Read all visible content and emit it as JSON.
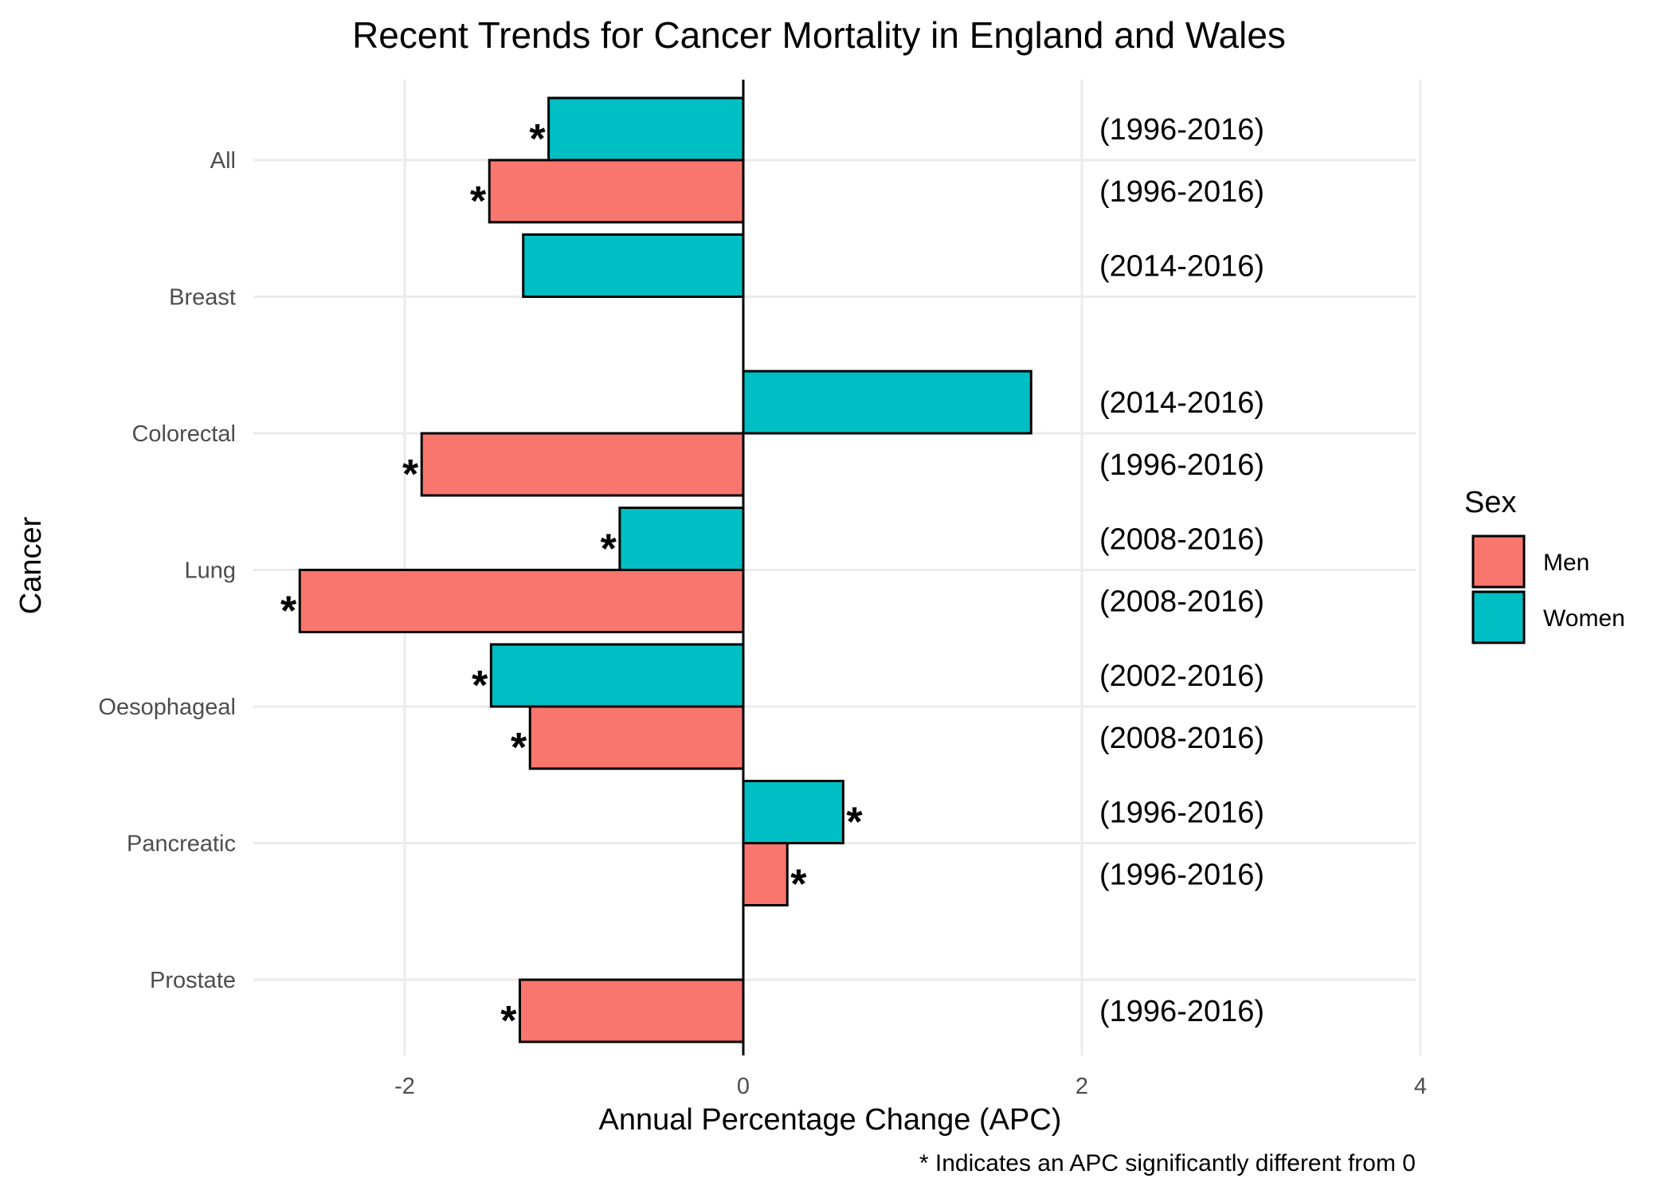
{
  "chart_data": {
    "type": "bar",
    "orientation": "horizontal",
    "title": "Recent Trends for Cancer Mortality in England and Wales",
    "xlabel": "Annual Percentage Change (APC)",
    "ylabel": "Cancer",
    "caption": "* Indicates an APC significantly different from 0",
    "xlim": [
      -2.9,
      4.0
    ],
    "xticks": [
      -2,
      0,
      2,
      4
    ],
    "xtick_labels": [
      "-2",
      "0",
      "2",
      "4"
    ],
    "grid": true,
    "legend": {
      "title": "Sex",
      "position": "right"
    },
    "significance_marker": "*",
    "categories": [
      "All",
      "Breast",
      "Colorectal",
      "Lung",
      "Oesophageal",
      "Pancreatic",
      "Prostate"
    ],
    "series": [
      {
        "name": "Men",
        "color": "#F8766D",
        "values": [
          -1.5,
          null,
          -1.9,
          -2.62,
          -1.26,
          0.26,
          -1.32
        ],
        "significant": [
          true,
          null,
          true,
          true,
          true,
          true,
          true
        ],
        "periods": [
          "(1996-2016)",
          null,
          "(1996-2016)",
          "(2008-2016)",
          "(2008-2016)",
          "(1996-2016)",
          "(1996-2016)"
        ]
      },
      {
        "name": "Women",
        "color": "#00BFC4",
        "values": [
          -1.15,
          -1.3,
          1.7,
          -0.73,
          -1.49,
          0.59,
          null
        ],
        "significant": [
          true,
          false,
          false,
          true,
          true,
          true,
          null
        ],
        "periods": [
          "(1996-2016)",
          "(2014-2016)",
          "(2014-2016)",
          "(2008-2016)",
          "(2002-2016)",
          "(1996-2016)",
          null
        ]
      }
    ]
  }
}
